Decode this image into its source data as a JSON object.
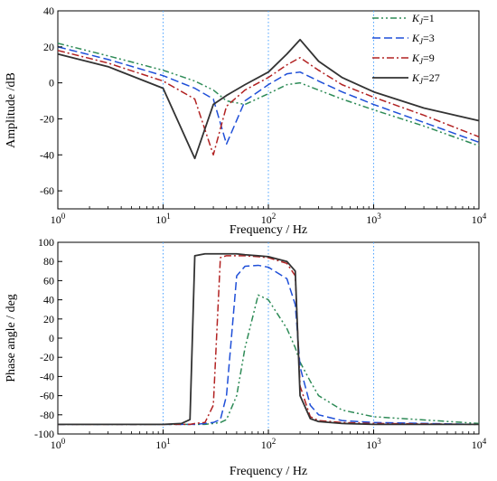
{
  "chart_data": [
    {
      "type": "line",
      "xlabel": "Frequency / Hz",
      "ylabel": "Amplitude /dB",
      "xscale": "log",
      "xlim": [
        1,
        10000
      ],
      "ylim": [
        -70,
        40
      ],
      "yticks": [
        -60,
        -40,
        -20,
        0,
        20,
        40
      ],
      "grid": "vertical dotted at decades",
      "legend": "top-right",
      "x": [
        1,
        3,
        10,
        20,
        30,
        40,
        60,
        100,
        150,
        200,
        300,
        500,
        1000,
        3000,
        10000
      ],
      "series": [
        {
          "name": "K_J=1",
          "color": "#2e8b57",
          "dash": "dash-dot-dot",
          "values": [
            22,
            15,
            7,
            1,
            -4,
            -10,
            -12,
            -6,
            -1,
            0,
            -4,
            -9,
            -15,
            -24,
            -35
          ]
        },
        {
          "name": "K_J=3",
          "color": "#1f4fd8",
          "dash": "dash",
          "values": [
            20,
            13,
            4,
            -3,
            -9,
            -34,
            -10,
            -1,
            5,
            6,
            1,
            -5,
            -12,
            -22,
            -33
          ]
        },
        {
          "name": "K_J=9",
          "color": "#b22222",
          "dash": "dash-dot",
          "values": [
            18,
            11,
            1,
            -9,
            -40,
            -13,
            -4,
            3,
            10,
            14,
            7,
            -1,
            -8,
            -18,
            -30
          ]
        },
        {
          "name": "K_J=27",
          "color": "#333333",
          "dash": "solid",
          "values": [
            16,
            9,
            -3,
            -42,
            -12,
            -7,
            -1,
            6,
            16,
            24,
            12,
            3,
            -5,
            -14,
            -21
          ]
        }
      ]
    },
    {
      "type": "line",
      "xlabel": "Frequency / Hz",
      "ylabel": "Phase angle / deg",
      "xscale": "log",
      "xlim": [
        1,
        10000
      ],
      "ylim": [
        -100,
        100
      ],
      "yticks": [
        -100,
        -80,
        -60,
        -40,
        -20,
        0,
        20,
        40,
        60,
        80,
        100
      ],
      "grid": "vertical dotted at decades",
      "x": [
        1,
        10,
        15,
        18,
        20,
        25,
        30,
        35,
        40,
        50,
        60,
        80,
        100,
        150,
        180,
        200,
        250,
        300,
        500,
        1000,
        10000
      ],
      "series": [
        {
          "name": "K_J=1",
          "color": "#2e8b57",
          "dash": "dash-dot-dot",
          "values": [
            -90,
            -90,
            -90,
            -90,
            -90,
            -90,
            -89,
            -88,
            -85,
            -60,
            -10,
            45,
            40,
            10,
            -10,
            -25,
            -45,
            -60,
            -75,
            -82,
            -89
          ]
        },
        {
          "name": "K_J=3",
          "color": "#1f4fd8",
          "dash": "dash",
          "values": [
            -90,
            -90,
            -90,
            -90,
            -90,
            -89,
            -88,
            -85,
            -60,
            65,
            75,
            76,
            74,
            62,
            35,
            -30,
            -70,
            -80,
            -86,
            -88,
            -90
          ]
        },
        {
          "name": "K_J=9",
          "color": "#b22222",
          "dash": "dash-dot",
          "values": [
            -90,
            -90,
            -90,
            -90,
            -89,
            -88,
            -70,
            84,
            86,
            86,
            86,
            85,
            84,
            78,
            65,
            -50,
            -82,
            -86,
            -88,
            -89,
            -90
          ]
        },
        {
          "name": "K_J=27",
          "color": "#333333",
          "dash": "solid",
          "values": [
            -90,
            -90,
            -89,
            -85,
            86,
            88,
            88,
            88,
            88,
            88,
            87,
            86,
            85,
            80,
            70,
            -60,
            -84,
            -87,
            -89,
            -90,
            -90
          ]
        }
      ]
    }
  ],
  "legend": [
    {
      "sym": "K",
      "sub": "J",
      "rest": "=1"
    },
    {
      "sym": "K",
      "sub": "J",
      "rest": "=3"
    },
    {
      "sym": "K",
      "sub": "J",
      "rest": "=9"
    },
    {
      "sym": "K",
      "sub": "J",
      "rest": "=27"
    }
  ],
  "x_tick_labels": [
    {
      "base": "10",
      "exp": "0"
    },
    {
      "base": "10",
      "exp": "1"
    },
    {
      "base": "10",
      "exp": "2"
    },
    {
      "base": "10",
      "exp": "3"
    },
    {
      "base": "10",
      "exp": "4"
    }
  ]
}
